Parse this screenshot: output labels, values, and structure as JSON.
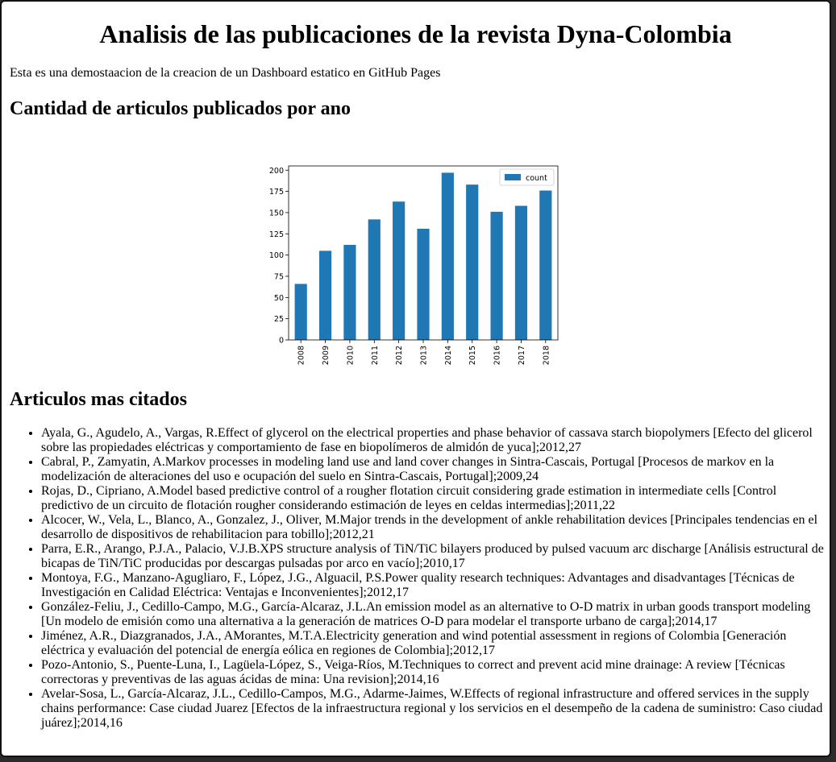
{
  "header": {
    "title": "Analisis de las publicaciones de la revista Dyna-Colombia",
    "intro": "Esta es una demostaacion de la creacion de un Dashboard estatico en GitHub Pages"
  },
  "sections": {
    "chart_heading": "Cantidad de articulos publicados por ano",
    "cited_heading": "Articulos mas citados"
  },
  "chart_data": {
    "type": "bar",
    "categories": [
      "2008",
      "2009",
      "2010",
      "2011",
      "2012",
      "2013",
      "2014",
      "2015",
      "2016",
      "2017",
      "2018"
    ],
    "series": [
      {
        "name": "count",
        "values": [
          66,
          105,
          112,
          142,
          163,
          131,
          197,
          183,
          151,
          158,
          176
        ],
        "color": "#1f77b4"
      }
    ],
    "title": "",
    "xlabel": "",
    "ylabel": "",
    "ylim": [
      0,
      205
    ],
    "yticks": [
      0,
      25,
      50,
      75,
      100,
      125,
      150,
      175,
      200
    ],
    "legend": "top-right",
    "grid": false
  },
  "cited": [
    "Ayala, G., Agudelo, A., Vargas, R.Effect of glycerol on the electrical properties and phase behavior of cassava starch biopolymers [Efecto del glicerol sobre las propiedades eléctricas y comportamiento de fase en biopolímeros de almidón de yuca];2012,27",
    "Cabral, P., Zamyatin, A.Markov processes in modeling land use and land cover changes in Sintra-Cascais, Portugal [Procesos de markov en la modelización de alteraciones del uso e ocupación del suelo en Sintra-Cascais, Portugal];2009,24",
    "Rojas, D., Cipriano, A.Model based predictive control of a rougher flotation circuit considering grade estimation in intermediate cells [Control predictivo de un circuito de flotación rougher considerando estimación de leyes en celdas intermedias];2011,22",
    "Alcocer, W., Vela, L., Blanco, A., Gonzalez, J., Oliver, M.Major trends in the development of ankle rehabilitation devices [Principales tendencias en el desarrollo de dispositivos de rehabilitacion para tobillo];2012,21",
    "Parra, E.R., Arango, P.J.A., Palacio, V.J.B.XPS structure analysis of TiN/TiC bilayers produced by pulsed vacuum arc discharge [Análisis estructural de bicapas de TiN/TiC producidas por descargas pulsadas por arco en vacío];2010,17",
    "Montoya, F.G., Manzano-Agugliaro, F., López, J.G., Alguacil, P.S.Power quality research techniques: Advantages and disadvantages [Técnicas de Investigación en Calidad Eléctrica: Ventajas e Inconvenientes];2012,17",
    "González-Feliu, J., Cedillo-Campo, M.G., García-Alcaraz, J.L.An emission model as an alternative to O-D matrix in urban goods transport modeling [Un modelo de emisión como una alternativa a la generación de matrices O-D para modelar el transporte urbano de carga];2014,17",
    "Jiménez, A.R., Diazgranados, J.A., AMorantes, M.T.A.Electricity generation and wind potential assessment in regions of Colombia [Generación eléctrica y evaluación del potencial de energía eólica en regiones de Colombia];2012,17",
    "Pozo-Antonio, S., Puente-Luna, I., Lagüela-López, S., Veiga-Ríos, M.Techniques to correct and prevent acid mine drainage: A review [Técnicas correctoras y preventivas de las aguas ácidas de mina: Una revision];2014,16",
    "Avelar-Sosa, L., García-Alcaraz, J.L., Cedillo-Campos, M.G., Adarme-Jaimes, W.Effects of regional infrastructure and offered services in the supply chains performance: Case ciudad Juarez [Efectos de la infraestructura regional y los servicios en el desempeño de la cadena de suministro: Caso ciudad juárez];2014,16"
  ]
}
